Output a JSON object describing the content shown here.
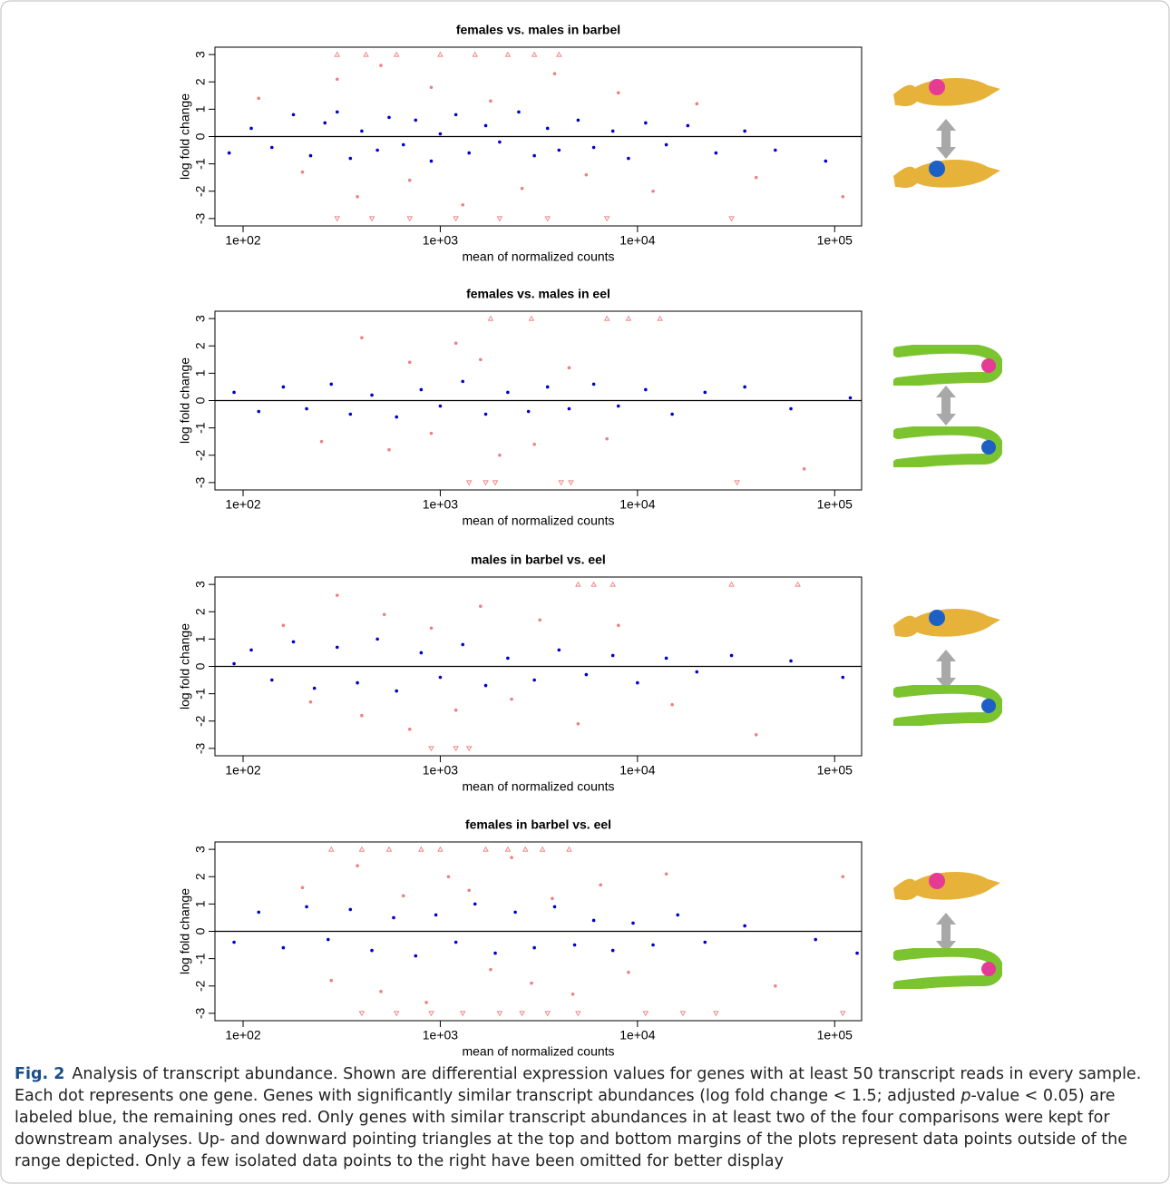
{
  "chart_data": [
    {
      "type": "scatter",
      "title": "females vs. males in barbel",
      "x_label": "mean of normalized counts",
      "y_label": "log fold change",
      "x_log": true,
      "xlim": [
        72,
        137000
      ],
      "ylim": [
        -3.27,
        3.27
      ],
      "xticks": [
        {
          "value": 100,
          "label": "1e+02"
        },
        {
          "value": 1000,
          "label": "1e+03"
        },
        {
          "value": 10000,
          "label": "1e+04"
        },
        {
          "value": 100000,
          "label": "1e+05"
        }
      ],
      "yticks": [
        -3,
        -2,
        -1,
        0,
        1,
        2,
        3
      ],
      "reference_line": 0,
      "series": [
        {
          "color": "#0000cc",
          "marker": "dot",
          "x": [
            85,
            110,
            140,
            180,
            220,
            260,
            300,
            350,
            400,
            480,
            550,
            650,
            750,
            900,
            1000,
            1200,
            1400,
            1700,
            2000,
            2500,
            3000,
            3500,
            4000,
            5000,
            6000,
            7500,
            9000,
            11000,
            14000,
            18000,
            25000,
            35000,
            50000,
            90000
          ],
          "values": [
            -0.6,
            0.3,
            -0.4,
            0.8,
            -0.7,
            0.5,
            0.9,
            -0.8,
            0.2,
            -0.5,
            0.7,
            -0.3,
            0.6,
            -0.9,
            0.1,
            0.8,
            -0.6,
            0.4,
            -0.2,
            0.9,
            -0.7,
            0.3,
            -0.5,
            0.6,
            -0.4,
            0.2,
            -0.8,
            0.5,
            -0.3,
            0.4,
            -0.6,
            0.2,
            -0.5,
            -0.9
          ]
        },
        {
          "color": "#f08080",
          "marker": "dot",
          "x": [
            120,
            200,
            300,
            380,
            500,
            700,
            900,
            1300,
            1800,
            2600,
            3800,
            5500,
            8000,
            12000,
            20000,
            40000,
            110000
          ],
          "values": [
            1.4,
            -1.3,
            2.1,
            -2.2,
            2.6,
            -1.6,
            1.8,
            -2.5,
            1.3,
            -1.9,
            2.3,
            -1.4,
            1.6,
            -2.0,
            1.2,
            -1.5,
            -2.2
          ]
        },
        {
          "color": "#f08080",
          "marker": "triangle-up",
          "x": [
            300,
            420,
            600,
            1000,
            1500,
            2200,
            3000,
            4000
          ],
          "values": [
            3,
            3,
            3,
            3,
            3,
            3,
            3,
            3
          ]
        },
        {
          "color": "#f08080",
          "marker": "triangle-down",
          "x": [
            300,
            450,
            700,
            1200,
            2000,
            3500,
            7000,
            30000
          ],
          "values": [
            -3,
            -3,
            -3,
            -3,
            -3,
            -3,
            -3,
            -3
          ]
        }
      ]
    },
    {
      "type": "scatter",
      "title": "females vs. males in eel",
      "x_label": "mean of normalized counts",
      "y_label": "log fold change",
      "x_log": true,
      "xlim": [
        72,
        137000
      ],
      "ylim": [
        -3.27,
        3.27
      ],
      "xticks": [
        {
          "value": 100,
          "label": "1e+02"
        },
        {
          "value": 1000,
          "label": "1e+03"
        },
        {
          "value": 10000,
          "label": "1e+04"
        },
        {
          "value": 100000,
          "label": "1e+05"
        }
      ],
      "yticks": [
        -3,
        -2,
        -1,
        0,
        1,
        2,
        3
      ],
      "reference_line": 0,
      "series": [
        {
          "color": "#0000cc",
          "marker": "dot",
          "x": [
            90,
            120,
            160,
            210,
            280,
            350,
            450,
            600,
            800,
            1000,
            1300,
            1700,
            2200,
            2800,
            3500,
            4500,
            6000,
            8000,
            11000,
            15000,
            22000,
            35000,
            60000,
            120000
          ],
          "values": [
            0.3,
            -0.4,
            0.5,
            -0.3,
            0.6,
            -0.5,
            0.2,
            -0.6,
            0.4,
            -0.2,
            0.7,
            -0.5,
            0.3,
            -0.4,
            0.5,
            -0.3,
            0.6,
            -0.2,
            0.4,
            -0.5,
            0.3,
            0.5,
            -0.3,
            0.1
          ]
        },
        {
          "color": "#f08080",
          "marker": "dot",
          "x": [
            250,
            400,
            550,
            700,
            900,
            1200,
            1600,
            2000,
            3000,
            4500,
            7000,
            70000
          ],
          "values": [
            -1.5,
            2.3,
            -1.8,
            1.4,
            -1.2,
            2.1,
            1.5,
            -2.0,
            -1.6,
            1.2,
            -1.4,
            -2.5
          ]
        },
        {
          "color": "#f08080",
          "marker": "triangle-up",
          "x": [
            1800,
            2900,
            7000,
            9000,
            13000
          ],
          "values": [
            3,
            3,
            3,
            3,
            3
          ]
        },
        {
          "color": "#f08080",
          "marker": "triangle-down",
          "x": [
            1400,
            1700,
            1900,
            4100,
            4600,
            32000
          ],
          "values": [
            -3,
            -3,
            -3,
            -3,
            -3,
            -3
          ]
        }
      ]
    },
    {
      "type": "scatter",
      "title": "males in barbel vs. eel",
      "x_label": "mean of normalized counts",
      "y_label": "log fold change",
      "x_log": true,
      "xlim": [
        72,
        137000
      ],
      "ylim": [
        -3.27,
        3.27
      ],
      "xticks": [
        {
          "value": 100,
          "label": "1e+02"
        },
        {
          "value": 1000,
          "label": "1e+03"
        },
        {
          "value": 10000,
          "label": "1e+04"
        },
        {
          "value": 100000,
          "label": "1e+05"
        }
      ],
      "yticks": [
        -3,
        -2,
        -1,
        0,
        1,
        2,
        3
      ],
      "reference_line": 0,
      "series": [
        {
          "color": "#0000cc",
          "marker": "dot",
          "x": [
            90,
            110,
            140,
            180,
            230,
            300,
            380,
            480,
            600,
            800,
            1000,
            1300,
            1700,
            2200,
            3000,
            4000,
            5500,
            7500,
            10000,
            14000,
            20000,
            30000,
            60000,
            110000
          ],
          "values": [
            0.1,
            0.6,
            -0.5,
            0.9,
            -0.8,
            0.7,
            -0.6,
            1.0,
            -0.9,
            0.5,
            -0.4,
            0.8,
            -0.7,
            0.3,
            -0.5,
            0.6,
            -0.3,
            0.4,
            -0.6,
            0.3,
            -0.2,
            0.4,
            0.2,
            -0.4
          ]
        },
        {
          "color": "#f08080",
          "marker": "dot",
          "x": [
            160,
            220,
            300,
            400,
            520,
            700,
            900,
            1200,
            1600,
            2300,
            3200,
            5000,
            8000,
            15000,
            40000
          ],
          "values": [
            1.5,
            -1.3,
            2.6,
            -1.8,
            1.9,
            -2.3,
            1.4,
            -1.6,
            2.2,
            -1.2,
            1.7,
            -2.1,
            1.5,
            -1.4,
            -2.5
          ]
        },
        {
          "color": "#f08080",
          "marker": "triangle-up",
          "x": [
            5000,
            6000,
            7500,
            30000,
            65000
          ],
          "values": [
            3,
            3,
            3,
            3,
            3
          ]
        },
        {
          "color": "#f08080",
          "marker": "triangle-down",
          "x": [
            900,
            1200,
            1400
          ],
          "values": [
            -3,
            -3,
            -3
          ]
        }
      ]
    },
    {
      "type": "scatter",
      "title": "females in barbel vs. eel",
      "x_label": "mean of normalized counts",
      "y_label": "log fold change",
      "x_log": true,
      "xlim": [
        72,
        137000
      ],
      "ylim": [
        -3.27,
        3.27
      ],
      "xticks": [
        {
          "value": 100,
          "label": "1e+02"
        },
        {
          "value": 1000,
          "label": "1e+03"
        },
        {
          "value": 10000,
          "label": "1e+04"
        },
        {
          "value": 100000,
          "label": "1e+05"
        }
      ],
      "yticks": [
        -3,
        -2,
        -1,
        0,
        1,
        2,
        3
      ],
      "reference_line": 0,
      "series": [
        {
          "color": "#0000cc",
          "marker": "dot",
          "x": [
            90,
            120,
            160,
            210,
            270,
            350,
            450,
            580,
            750,
            950,
            1200,
            1500,
            1900,
            2400,
            3000,
            3800,
            4800,
            6000,
            7500,
            9500,
            12000,
            16000,
            22000,
            35000,
            80000,
            130000
          ],
          "values": [
            -0.4,
            0.7,
            -0.6,
            0.9,
            -0.3,
            0.8,
            -0.7,
            0.5,
            -0.9,
            0.6,
            -0.4,
            1.0,
            -0.8,
            0.7,
            -0.6,
            0.9,
            -0.5,
            0.4,
            -0.7,
            0.3,
            -0.5,
            0.6,
            -0.4,
            0.2,
            -0.3,
            -0.8
          ]
        },
        {
          "color": "#f08080",
          "marker": "dot",
          "x": [
            200,
            280,
            380,
            500,
            650,
            850,
            1100,
            1400,
            1800,
            2300,
            2900,
            3700,
            4700,
            6500,
            9000,
            14000,
            50000,
            110000
          ],
          "values": [
            1.6,
            -1.8,
            2.4,
            -2.2,
            1.3,
            -2.6,
            2.0,
            1.5,
            -1.4,
            2.7,
            -1.9,
            1.2,
            -2.3,
            1.7,
            -1.5,
            2.1,
            -2.0,
            2.0
          ]
        },
        {
          "color": "#f08080",
          "marker": "triangle-up",
          "x": [
            280,
            400,
            550,
            800,
            1000,
            1700,
            2200,
            2700,
            3300,
            4500
          ],
          "values": [
            3,
            3,
            3,
            3,
            3,
            3,
            3,
            3,
            3,
            3
          ]
        },
        {
          "color": "#f08080",
          "marker": "triangle-down",
          "x": [
            400,
            600,
            900,
            1300,
            2000,
            2600,
            3500,
            5000,
            11000,
            17000,
            25000,
            110000
          ],
          "values": [
            -3,
            -3,
            -3,
            -3,
            -3,
            -3,
            -3,
            -3,
            -3,
            -3,
            -3,
            -3
          ]
        }
      ]
    }
  ],
  "caption": {
    "label": "Fig. 2",
    "text_1": "Analysis of transcript abundance. Shown are differential expression values for genes with at least 50 transcript reads in every sample. Each dot represents one gene. Genes with significantly similar transcript abundances (log fold change < 1.5; adjusted ",
    "p": "p",
    "text_2": "-value < 0.05) are labeled blue, the remaining ones red. Only genes with similar transcript abundances in at least two of the four comparisons were kept for downstream analyses. Up- and downward pointing triangles at the top and bottom margins of the plots represent data points outside of the range depicted. Only a few isolated data points to the right have been omitted for better display"
  }
}
